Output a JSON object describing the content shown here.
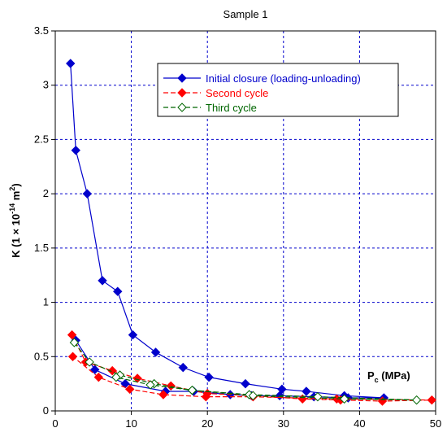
{
  "chart_data": {
    "type": "line",
    "title": "Sample 1",
    "ylabel": {
      "base": "K (1 × 10",
      "exp": "-14",
      "unit": " m",
      "unit_exp": "2",
      "close": ")"
    },
    "xlabel": {
      "base": "P",
      "sub": "c",
      "rest": " (MPa)"
    },
    "xlim": [
      0,
      50
    ],
    "ylim": [
      0,
      3.5
    ],
    "xticks": [
      0,
      10,
      20,
      30,
      40,
      50
    ],
    "yticks": [
      0,
      0.5,
      1,
      1.5,
      2,
      2.5,
      3,
      3.5
    ],
    "ytick_labels": [
      "0",
      "0.5",
      "1",
      "1.5",
      "2",
      "2.5",
      "3",
      "3.5"
    ],
    "grid": true,
    "legend_position": "top-right",
    "series": [
      {
        "name": "Initial closure (loading-unloading)",
        "color": "#0000cc",
        "marker": "filled-diamond",
        "line": "solid",
        "points": [
          [
            2.0,
            3.2
          ],
          [
            2.7,
            2.4
          ],
          [
            4.2,
            2.0
          ],
          [
            6.2,
            1.2
          ],
          [
            8.2,
            1.1
          ],
          [
            10.2,
            0.7
          ],
          [
            13.2,
            0.54
          ],
          [
            16.8,
            0.4
          ],
          [
            20.2,
            0.31
          ],
          [
            25.0,
            0.25
          ],
          [
            29.8,
            0.2
          ],
          [
            33.0,
            0.18
          ],
          [
            38.0,
            0.14
          ],
          [
            43.2,
            0.12
          ],
          [
            38.5,
            0.12
          ],
          [
            34.0,
            0.13
          ],
          [
            29.5,
            0.14
          ],
          [
            25.8,
            0.14
          ],
          [
            23.0,
            0.15
          ],
          [
            18.2,
            0.18
          ],
          [
            14.5,
            0.18
          ],
          [
            9.2,
            0.25
          ],
          [
            5.2,
            0.38
          ],
          [
            2.7,
            0.65
          ]
        ]
      },
      {
        "name": "Second cycle",
        "color": "#ff0000",
        "marker": "filled-diamond",
        "line": "dashed",
        "points": [
          [
            2.2,
            0.7
          ],
          [
            4.0,
            0.45
          ],
          [
            7.5,
            0.37
          ],
          [
            10.8,
            0.3
          ],
          [
            15.2,
            0.23
          ],
          [
            20.0,
            0.16
          ],
          [
            26.0,
            0.14
          ],
          [
            32.5,
            0.11
          ],
          [
            37.5,
            0.1
          ],
          [
            43.0,
            0.09
          ],
          [
            49.5,
            0.1
          ],
          [
            37.0,
            0.11
          ],
          [
            26.0,
            0.13
          ],
          [
            19.8,
            0.13
          ],
          [
            14.2,
            0.15
          ],
          [
            9.8,
            0.2
          ],
          [
            5.7,
            0.31
          ],
          [
            2.3,
            0.5
          ]
        ]
      },
      {
        "name": "Third cycle",
        "color": "#006600",
        "marker": "open-diamond",
        "line": "dashed",
        "points": [
          [
            2.5,
            0.63
          ],
          [
            4.5,
            0.45
          ],
          [
            8.5,
            0.33
          ],
          [
            13.0,
            0.25
          ],
          [
            18.0,
            0.19
          ],
          [
            25.5,
            0.15
          ],
          [
            34.5,
            0.13
          ],
          [
            47.5,
            0.1
          ],
          [
            38.0,
            0.11
          ],
          [
            26.0,
            0.14
          ],
          [
            18.0,
            0.19
          ],
          [
            12.5,
            0.24
          ],
          [
            8.0,
            0.31
          ]
        ]
      }
    ]
  }
}
